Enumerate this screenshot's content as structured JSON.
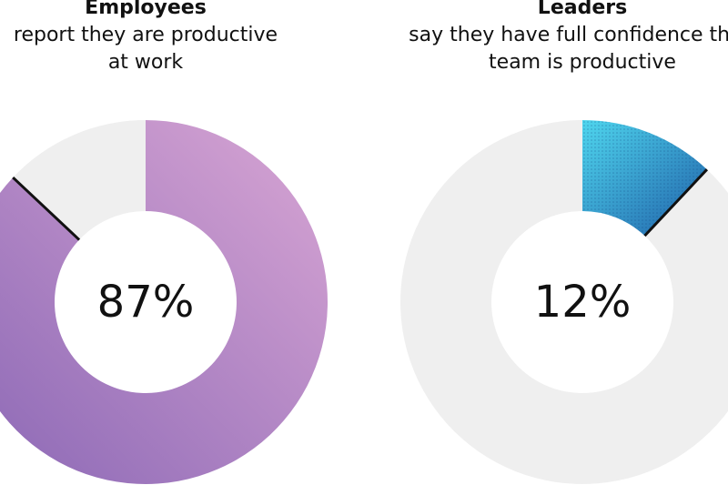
{
  "chart_data": [
    {
      "type": "pie",
      "variant": "donut",
      "title": "Employees",
      "subtitle": "report they are productive at work",
      "subtitle_lines": [
        "report they are productive",
        "at work"
      ],
      "value_label": "87%",
      "slices": [
        {
          "label": "",
          "value": 87,
          "color": "#b58ac4"
        },
        {
          "label": "",
          "value": 13,
          "color": "#efefef"
        }
      ]
    },
    {
      "type": "pie",
      "variant": "donut",
      "title": "Leaders",
      "subtitle": "say they have full confidence their team is productive",
      "subtitle_lines": [
        "say they have full confidence their",
        "team is productive"
      ],
      "value_label": "12%",
      "slices": [
        {
          "label": "",
          "value": 12,
          "color": "#2a9fd8"
        },
        {
          "label": "",
          "value": 88,
          "color": "#efefef"
        }
      ]
    }
  ],
  "colors": {
    "employees_gradient_start": "#d9a6d4",
    "employees_gradient_end": "#8a67b5",
    "leaders_gradient_start": "#4fd6ee",
    "leaders_gradient_end": "#1f5fa8",
    "remainder": "#efefef",
    "separator": "#111111"
  }
}
